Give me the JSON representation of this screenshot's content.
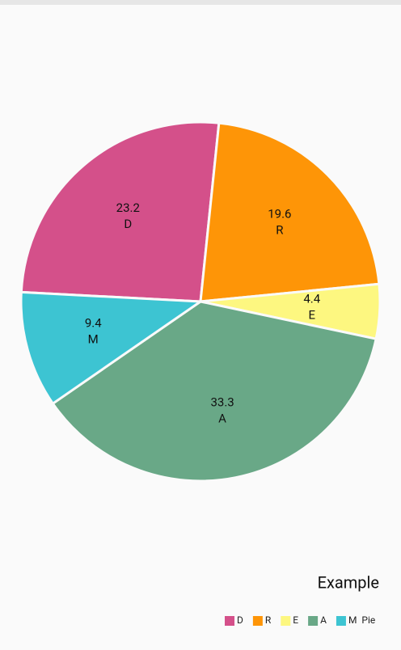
{
  "chart_data": {
    "type": "pie",
    "categories": [
      "D",
      "R",
      "E",
      "A",
      "M"
    ],
    "values": [
      23.2,
      19.6,
      4.4,
      33.3,
      9.4
    ],
    "colors": [
      "#d4508a",
      "#fe9507",
      "#fdf780",
      "#69a887",
      "#3dc4d2"
    ],
    "description": "Example",
    "legend_label": "Pie",
    "legend": "bottom-right"
  }
}
